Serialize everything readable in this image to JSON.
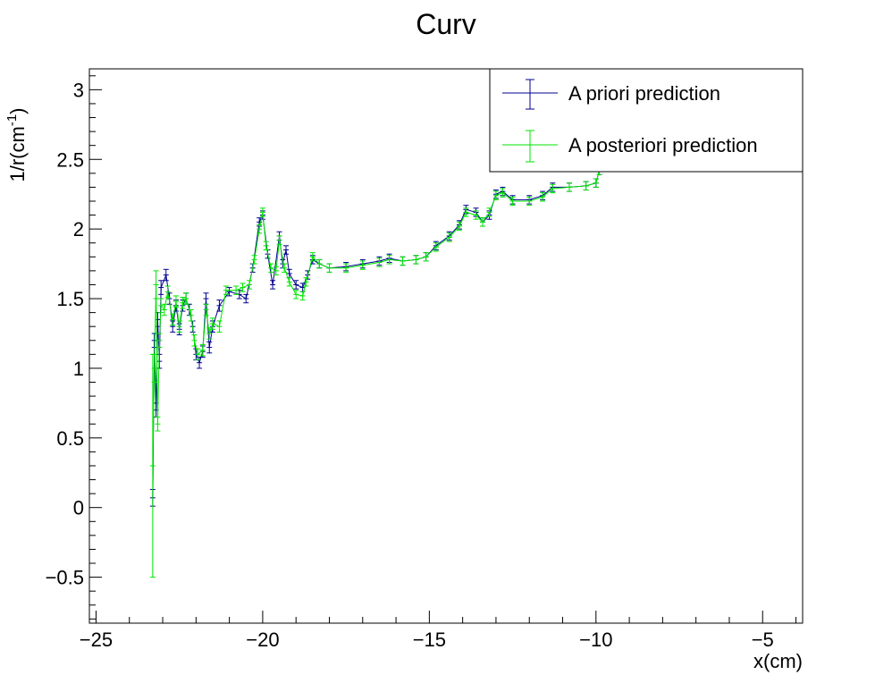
{
  "chart_data": {
    "type": "line",
    "title": "Curv",
    "xlabel": "x(cm)",
    "ylabel": {
      "base": "1/r(cm",
      "sup": "-1",
      "close": ")"
    },
    "xlim": [
      -25.2,
      -3.8
    ],
    "ylim": [
      -0.83,
      3.15
    ],
    "xticks": [
      -25,
      -20,
      -15,
      -10,
      -5
    ],
    "xtick_labels": [
      "−25",
      "−20",
      "−15",
      "−10",
      "−5"
    ],
    "yticks": [
      -0.5,
      0,
      0.5,
      1,
      1.5,
      2,
      2.5,
      3
    ],
    "ytick_labels": [
      "−0.5",
      "0",
      "0.5",
      "1",
      "1.5",
      "2",
      "2.5",
      "3"
    ],
    "legend_position": "top-right",
    "series": [
      {
        "name": "A priori prediction",
        "color": "#00008f",
        "points": [
          [
            -23.3,
            0.07,
            0.06
          ],
          [
            -23.25,
            1.2,
            0.05
          ],
          [
            -23.2,
            0.7,
            0.05
          ],
          [
            -23.15,
            1.35,
            0.05
          ],
          [
            -23.1,
            1.05,
            0.05
          ],
          [
            -23.05,
            1.58,
            0.05
          ],
          [
            -22.9,
            1.67,
            0.04
          ],
          [
            -22.8,
            1.5,
            0.04
          ],
          [
            -22.7,
            1.3,
            0.04
          ],
          [
            -22.6,
            1.45,
            0.04
          ],
          [
            -22.5,
            1.28,
            0.04
          ],
          [
            -22.4,
            1.45,
            0.04
          ],
          [
            -22.3,
            1.5,
            0.04
          ],
          [
            -22.2,
            1.42,
            0.04
          ],
          [
            -22.1,
            1.3,
            0.04
          ],
          [
            -22.0,
            1.1,
            0.04
          ],
          [
            -21.9,
            1.04,
            0.04
          ],
          [
            -21.8,
            1.12,
            0.04
          ],
          [
            -21.7,
            1.5,
            0.04
          ],
          [
            -21.6,
            1.15,
            0.04
          ],
          [
            -21.5,
            1.3,
            0.04
          ],
          [
            -21.3,
            1.45,
            0.04
          ],
          [
            -21.0,
            1.55,
            0.03
          ],
          [
            -20.7,
            1.53,
            0.03
          ],
          [
            -20.5,
            1.5,
            0.03
          ],
          [
            -20.3,
            1.72,
            0.03
          ],
          [
            -20.1,
            2.05,
            0.03
          ],
          [
            -20.0,
            2.1,
            0.03
          ],
          [
            -19.85,
            1.82,
            0.03
          ],
          [
            -19.7,
            1.6,
            0.03
          ],
          [
            -19.5,
            1.95,
            0.03
          ],
          [
            -19.4,
            1.75,
            0.03
          ],
          [
            -19.3,
            1.85,
            0.03
          ],
          [
            -19.2,
            1.68,
            0.03
          ],
          [
            -19.0,
            1.6,
            0.03
          ],
          [
            -18.8,
            1.58,
            0.03
          ],
          [
            -18.65,
            1.67,
            0.03
          ],
          [
            -18.5,
            1.78,
            0.03
          ],
          [
            -18.3,
            1.75,
            0.03
          ],
          [
            -18.0,
            1.72,
            0.03
          ],
          [
            -17.5,
            1.73,
            0.03
          ],
          [
            -17.0,
            1.75,
            0.03
          ],
          [
            -16.5,
            1.77,
            0.03
          ],
          [
            -16.2,
            1.79,
            0.03
          ],
          [
            -15.8,
            1.77,
            0.03
          ],
          [
            -15.4,
            1.78,
            0.03
          ],
          [
            -15.1,
            1.8,
            0.03
          ],
          [
            -14.8,
            1.88,
            0.03
          ],
          [
            -14.4,
            1.95,
            0.03
          ],
          [
            -14.1,
            2.03,
            0.03
          ],
          [
            -13.9,
            2.14,
            0.03
          ],
          [
            -13.6,
            2.12,
            0.03
          ],
          [
            -13.4,
            2.05,
            0.03
          ],
          [
            -13.2,
            2.1,
            0.03
          ],
          [
            -13.0,
            2.25,
            0.03
          ],
          [
            -12.8,
            2.27,
            0.03
          ],
          [
            -12.5,
            2.21,
            0.03
          ],
          [
            -12.0,
            2.21,
            0.03
          ],
          [
            -11.6,
            2.24,
            0.03
          ],
          [
            -11.3,
            2.3,
            0.03
          ],
          [
            -10.8,
            2.3,
            0.03
          ],
          [
            -10.3,
            2.31,
            0.03
          ],
          [
            -10.0,
            2.33,
            0.03
          ],
          [
            -9.9,
            2.42,
            0.03
          ]
        ]
      },
      {
        "name": "A posteriori prediction",
        "color": "#00e600",
        "points": [
          [
            -23.3,
            0.3,
            0.8
          ],
          [
            -23.25,
            1.0,
            0.1
          ],
          [
            -23.2,
            1.6,
            0.1
          ],
          [
            -23.15,
            0.6,
            0.05
          ],
          [
            -23.1,
            1.2,
            0.05
          ],
          [
            -23.05,
            1.45,
            0.05
          ],
          [
            -22.95,
            1.42,
            0.04
          ],
          [
            -22.85,
            1.55,
            0.04
          ],
          [
            -22.7,
            1.35,
            0.04
          ],
          [
            -22.6,
            1.48,
            0.04
          ],
          [
            -22.5,
            1.3,
            0.04
          ],
          [
            -22.4,
            1.47,
            0.04
          ],
          [
            -22.3,
            1.5,
            0.04
          ],
          [
            -22.15,
            1.38,
            0.04
          ],
          [
            -22.05,
            1.2,
            0.04
          ],
          [
            -21.95,
            1.1,
            0.04
          ],
          [
            -21.8,
            1.13,
            0.04
          ],
          [
            -21.7,
            1.42,
            0.04
          ],
          [
            -21.6,
            1.25,
            0.04
          ],
          [
            -21.5,
            1.32,
            0.04
          ],
          [
            -21.3,
            1.3,
            0.04
          ],
          [
            -21.1,
            1.56,
            0.03
          ],
          [
            -20.8,
            1.56,
            0.03
          ],
          [
            -20.6,
            1.58,
            0.03
          ],
          [
            -20.4,
            1.6,
            0.03
          ],
          [
            -20.25,
            1.78,
            0.03
          ],
          [
            -20.1,
            2.0,
            0.03
          ],
          [
            -20.0,
            2.12,
            0.03
          ],
          [
            -19.9,
            1.88,
            0.03
          ],
          [
            -19.75,
            1.72,
            0.03
          ],
          [
            -19.6,
            1.7,
            0.03
          ],
          [
            -19.5,
            1.92,
            0.03
          ],
          [
            -19.35,
            1.72,
            0.03
          ],
          [
            -19.2,
            1.62,
            0.03
          ],
          [
            -19.0,
            1.53,
            0.03
          ],
          [
            -18.8,
            1.52,
            0.03
          ],
          [
            -18.7,
            1.62,
            0.03
          ],
          [
            -18.5,
            1.8,
            0.03
          ],
          [
            -18.3,
            1.75,
            0.03
          ],
          [
            -18.0,
            1.72,
            0.03
          ],
          [
            -17.5,
            1.72,
            0.03
          ],
          [
            -17.0,
            1.74,
            0.03
          ],
          [
            -16.5,
            1.76,
            0.03
          ],
          [
            -16.2,
            1.78,
            0.03
          ],
          [
            -15.8,
            1.77,
            0.03
          ],
          [
            -15.4,
            1.78,
            0.03
          ],
          [
            -15.1,
            1.8,
            0.03
          ],
          [
            -14.8,
            1.87,
            0.03
          ],
          [
            -14.4,
            1.94,
            0.03
          ],
          [
            -14.1,
            2.02,
            0.03
          ],
          [
            -13.9,
            2.12,
            0.03
          ],
          [
            -13.6,
            2.1,
            0.03
          ],
          [
            -13.4,
            2.05,
            0.03
          ],
          [
            -13.2,
            2.12,
            0.03
          ],
          [
            -13.0,
            2.24,
            0.03
          ],
          [
            -12.8,
            2.26,
            0.03
          ],
          [
            -12.5,
            2.2,
            0.03
          ],
          [
            -12.0,
            2.2,
            0.03
          ],
          [
            -11.6,
            2.23,
            0.03
          ],
          [
            -11.3,
            2.29,
            0.03
          ],
          [
            -10.8,
            2.3,
            0.03
          ],
          [
            -10.3,
            2.31,
            0.03
          ],
          [
            -10.0,
            2.33,
            0.03
          ],
          [
            -9.9,
            2.42,
            0.03
          ]
        ]
      }
    ]
  }
}
